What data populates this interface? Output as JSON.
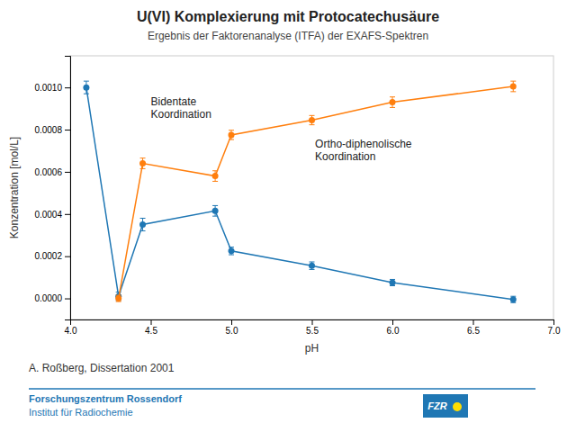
{
  "chart_data": {
    "type": "line",
    "title": "U(VI) Komplexierung mit Protocatechusäure",
    "subtitle": "Ergebnis der Faktorenanalyse (ITFA) der EXAFS-Spektren",
    "xlabel": "pH",
    "ylabel": "Konzentration [mol/L]",
    "marker": "circle",
    "line_style": "solid",
    "grid": false,
    "series": [
      {
        "x": [
          4.1,
          4.3,
          4.45,
          4.9,
          5.0,
          5.5,
          6.0,
          6.75
        ],
        "values": [
          0.001,
          1e-05,
          0.00035,
          0.000415,
          0.000225,
          0.000155,
          7.5e-05,
          -5e-06
        ],
        "errors": [
          3e-05,
          2e-05,
          3e-05,
          2.5e-05,
          1.8e-05,
          1.8e-05,
          1.5e-05,
          1.5e-05
        ]
      },
      {
        "x": [
          4.3,
          4.45,
          4.9,
          5.0,
          5.5,
          6.0,
          6.75
        ],
        "values": [
          0.0,
          0.00064,
          0.00058,
          0.000775,
          0.000845,
          0.00093,
          0.001005
        ],
        "errors": [
          1.5e-05,
          2.5e-05,
          2.5e-05,
          2.2e-05,
          2.2e-05,
          2.5e-05,
          2.5e-05
        ]
      }
    ],
    "xlim": [
      4.0,
      7.0
    ],
    "ylim": [
      -0.0001,
      0.00115
    ],
    "xticks": [
      {
        "value": 4.0,
        "label": "4.0"
      },
      4.5,
      {
        "value": 5.0,
        "label": "5.0"
      },
      5.5,
      {
        "value": 6.0,
        "label": "6.0"
      },
      6.5,
      {
        "value": 7.0,
        "label": "7.0"
      }
    ],
    "yticks": [
      {
        "value": 0.0,
        "label": "0.0000"
      },
      0.0002,
      0.0004,
      0.0006,
      0.0008,
      {
        "value": 0.001,
        "label": "0.0010"
      }
    ],
    "annotations": [
      {
        "text": "Bidentate\nKoordination",
        "x": 4.5,
        "y": 0.00096
      },
      {
        "text": "Ortho-diphenolische\nKoordination",
        "x": 5.52,
        "y": 0.00076
      }
    ],
    "attribution": "A. Roßberg, Dissertation 2001",
    "footer": [
      "Forschungszentrum Rossendorf",
      "Institut für Radiochemie"
    ],
    "logo": "FZR"
  }
}
